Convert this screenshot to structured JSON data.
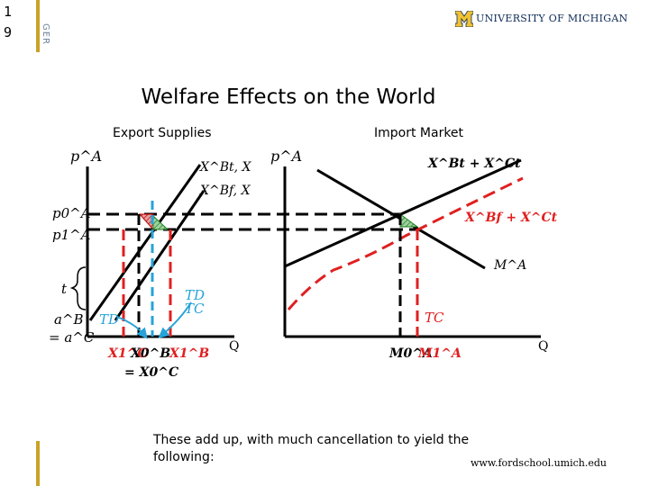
{
  "slide": {
    "number_line1": "1",
    "number_line2": "9"
  },
  "brand": {
    "side_label": "GER",
    "university": "UNIVERSITY OF MICHIGAN",
    "accent": "#c9a227",
    "navy": "#0b2a55"
  },
  "title": "Welfare Effects on the World",
  "panels": {
    "left": {
      "heading": "Export Supplies",
      "y_axis": "p^A",
      "x_axis": "Q",
      "curve_top": "X^Bt, X",
      "curve_bottom": "X^Bf, X",
      "price_p0": "p0^A",
      "price_p1": "p1^A",
      "t_label": "t",
      "intercept": "a^B",
      "intercept_eq": "= a^C",
      "td_left": "TD",
      "td_right": "TD",
      "tc_right": "TC",
      "x1c": "X1^C",
      "x0b": "X0^B",
      "x1b": "X1^B",
      "x0c_eq": "= X0^C"
    },
    "right": {
      "heading": "Import Market",
      "y_axis": "p^A",
      "x_axis": "Q",
      "supply_top": "X^Bt + X^Ct",
      "supply_dashed": "X^Bf + X^Ct",
      "demand": "M^A",
      "tc_label": "TC",
      "m0": "M0^A",
      "m1": "M1^A"
    }
  },
  "caption": "These add up, with much cancellation to yield the following:",
  "url": "www.fordschool.umich.edu"
}
